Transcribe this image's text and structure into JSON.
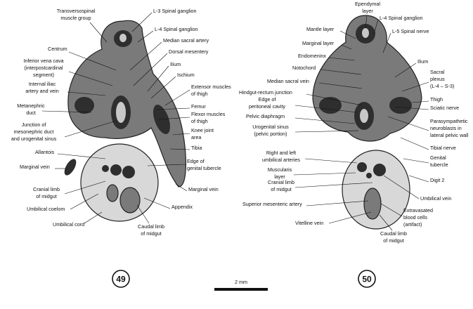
{
  "panels": [
    {
      "number": "49",
      "labels": [
        [
          "Transversospinal",
          "muscle group"
        ],
        [
          "L-3 Spinal ganglion"
        ],
        [
          "L-4 Spinal ganglion"
        ],
        [
          "Median sacral artery"
        ],
        [
          "Centrum"
        ],
        [
          "Dorsal mesentery"
        ],
        [
          "Inferior vena cava",
          "(interpostcardinal",
          "segment)"
        ],
        [
          "Ilium"
        ],
        [
          "Ischium"
        ],
        [
          "Internal iliac",
          "artery and vein"
        ],
        [
          "Extensor muscles",
          "of thigh"
        ],
        [
          "Metanephric",
          "duct"
        ],
        [
          "Femur"
        ],
        [
          "Flexor muscles",
          "of thigh"
        ],
        [
          "Junction of",
          "mesonephric duct",
          "and urogenital sinus"
        ],
        [
          "Knee joint",
          "area"
        ],
        [
          "Tibia"
        ],
        [
          "Allantois"
        ],
        [
          "Edge of",
          "genital tubercle"
        ],
        [
          "Marginal vein"
        ],
        [
          "Marginal vein"
        ],
        [
          "Cranial limb",
          "of midgut"
        ],
        [
          "Umbilical coelom"
        ],
        [
          "Appendix"
        ],
        [
          "Umbilical cord"
        ],
        [
          "Caudal limb",
          "of midgut"
        ]
      ]
    },
    {
      "number": "50",
      "labels": [
        [
          "Ependymal",
          "layer"
        ],
        [
          "L-4 Spinal ganglion"
        ],
        [
          "Mantle layer"
        ],
        [
          "L-5 Spinal nerve"
        ],
        [
          "Marginal layer"
        ],
        [
          "Endomeninx"
        ],
        [
          "Ilium"
        ],
        [
          "Notochord"
        ],
        [
          "Sacral",
          "plexus",
          "(L-4 – S-3)"
        ],
        [
          "Median sacral vein"
        ],
        [
          "Hindgut-rectum junction"
        ],
        [
          "Thigh"
        ],
        [
          "Sciatic nerve"
        ],
        [
          "Edge of",
          "peritoneal cavity"
        ],
        [
          "Parasympathetic",
          "neuroblasts in",
          "lateral pelvic wall"
        ],
        [
          "Pelvic diaphragm"
        ],
        [
          "Urogenital sinus",
          "(pelvic portion)"
        ],
        [
          "Tibial nerve"
        ],
        [
          "Right and left",
          "umbilical arteries"
        ],
        [
          "Genital",
          "tubercle"
        ],
        [
          "Muscularis",
          "layer"
        ],
        [
          "Cranial limb",
          "of midgut"
        ],
        [
          "Digit 2"
        ],
        [
          "Umbilical vein"
        ],
        [
          "Superior mesenteric artery"
        ],
        [
          "Extravasated",
          "blood cells",
          "(artifact)"
        ],
        [
          "Vitelline vein"
        ],
        [
          "Caudal limb",
          "of midgut"
        ]
      ]
    }
  ],
  "scale_bar": "2 mm"
}
